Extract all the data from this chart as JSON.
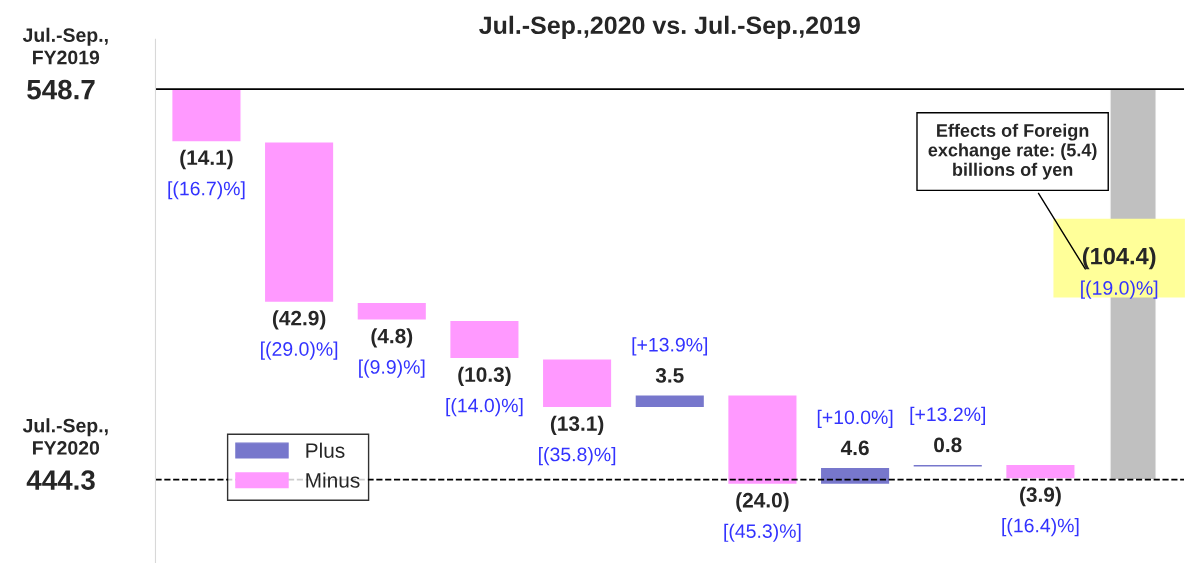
{
  "chart_data": {
    "type": "bar",
    "title": "Jul.-Sep.,2020 vs. Jul.-Sep.,2019",
    "categories": [
      null,
      null,
      null,
      null,
      null,
      null,
      null,
      null,
      null,
      null,
      null
    ],
    "series": [
      {
        "name": "Plus",
        "color": "#7777cc",
        "values": [
          null,
          null,
          null,
          null,
          null,
          3.5,
          null,
          4.6,
          0.8,
          null,
          null
        ],
        "base": [
          null,
          null,
          null,
          null,
          null,
          463.5,
          null,
          443.0,
          447.6,
          null,
          null
        ],
        "value_labels": [
          null,
          null,
          null,
          null,
          null,
          "3.5",
          null,
          "4.6",
          "0.8",
          null,
          null
        ]
      },
      {
        "name": "Minus",
        "color": "#ff99ff",
        "values": [
          -14.1,
          -42.9,
          -4.8,
          -10.3,
          -13.1,
          null,
          -24.0,
          null,
          null,
          -3.9,
          null
        ],
        "base": [
          548.7,
          534.6,
          491.7,
          486.9,
          476.6,
          null,
          467.0,
          null,
          null,
          448.4,
          null
        ],
        "value_labels": [
          "(14.1)",
          "(42.9)",
          "(4.8)",
          "(10.3)",
          "(13.1)",
          null,
          "(24.0)",
          null,
          null,
          "(3.9)",
          null
        ]
      },
      {
        "color": "#c0c0c0",
        "values": [
          null,
          null,
          null,
          null,
          null,
          null,
          null,
          null,
          null,
          null,
          -104.4
        ],
        "base": [
          null,
          null,
          null,
          null,
          null,
          null,
          null,
          null,
          null,
          null,
          548.7
        ],
        "value_labels": [
          null,
          null,
          null,
          null,
          null,
          null,
          null,
          null,
          null,
          null,
          "(104.4)"
        ]
      }
    ],
    "ylim": [
      422,
      562
    ],
    "yticks": [
      444.3,
      548.7
    ],
    "ref_lines": [
      {
        "axis": "y",
        "value": 548.7,
        "label": "Jul.-Sep.,\nFY2019",
        "line_style": "solid"
      },
      {
        "axis": "y",
        "value": 444.3,
        "label": "Jul.-Sep.,\nFY2020",
        "line_style": "dashed"
      }
    ],
    "annotations": [
      "Effects of Foreign\nexchange rate: (5.4)\nbillions of yen",
      "[(16.7)%]",
      "[(29.0)%]",
      "[(9.9)%]",
      "[(14.0)%]",
      "[(35.8)%]",
      "[+13.9%]",
      "[(45.3)%]",
      "[+10.0%]",
      "[+13.2%]",
      "[(16.4)%]",
      "[(19.0)%]"
    ],
    "legend": "bottom left",
    "grid": false
  }
}
